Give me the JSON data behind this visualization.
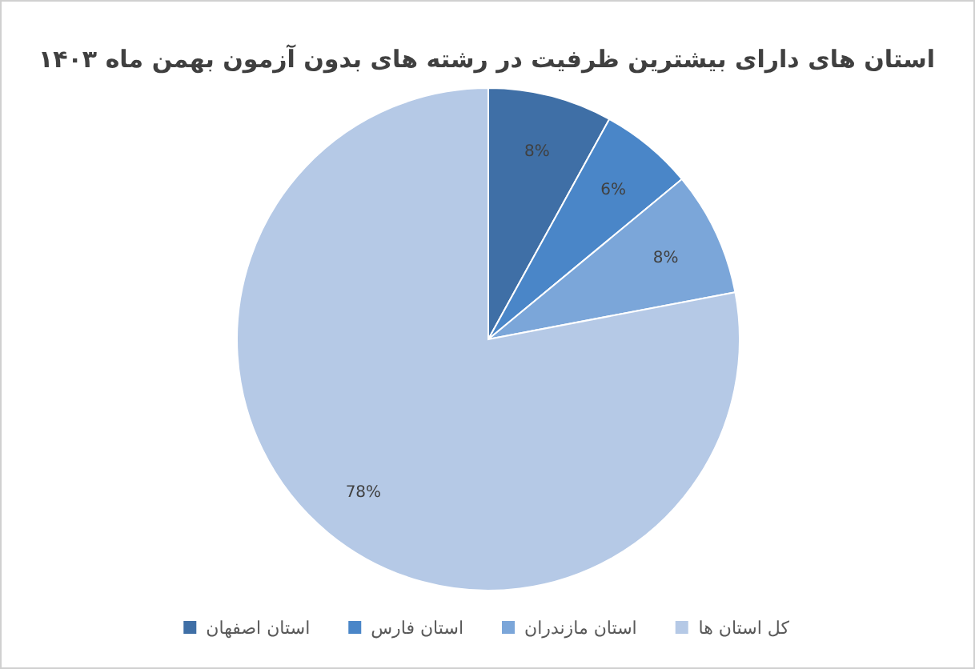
{
  "chart_data": {
    "type": "pie",
    "title": "استان های دارای بیشترین ظرفیت در رشته های بدون  آزمون بهمن ماه ۱۴۰۳",
    "categories": [
      "استان اصفهان",
      "استان فارس",
      "استان مازندران",
      "کل استان ها"
    ],
    "values": [
      8,
      6,
      8,
      78
    ],
    "colors": [
      "#3f6fa6",
      "#4a86c8",
      "#7ba6d9",
      "#b5c9e6"
    ],
    "value_labels": [
      "8%",
      "6%",
      "8%",
      "78%"
    ],
    "legend": "bottom"
  }
}
